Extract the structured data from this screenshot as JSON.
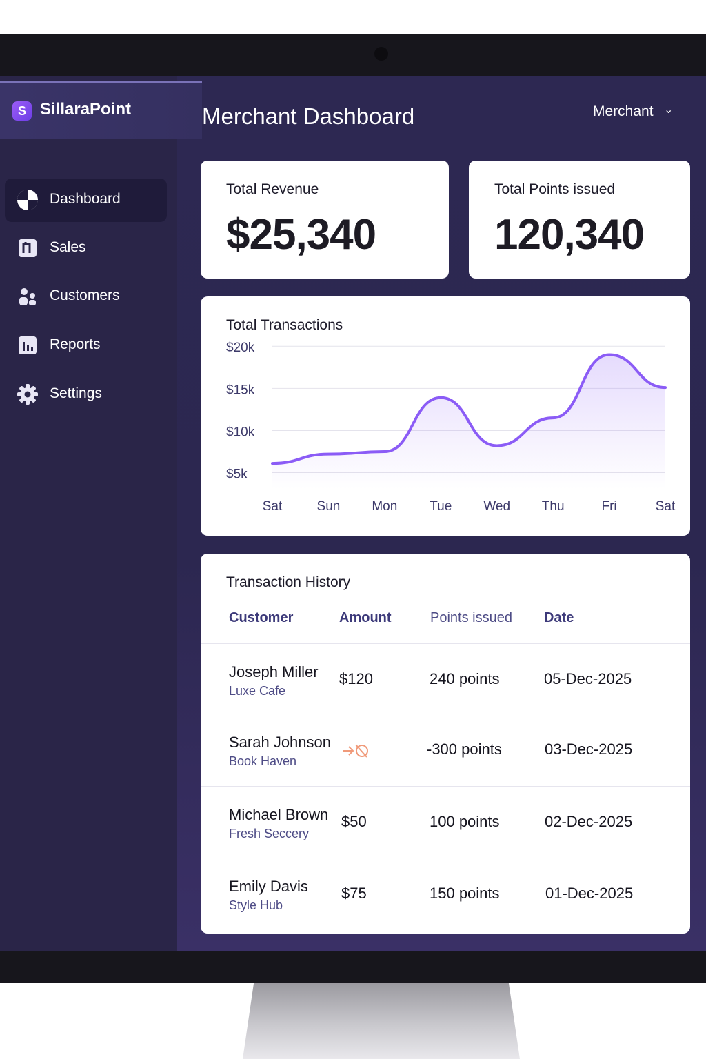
{
  "app": {
    "brand_name": "SillaraPoint",
    "brand_logo_glyph": "S",
    "accent_color": "#8b5cf6"
  },
  "sidebar": {
    "items": [
      {
        "label": "Dashboard",
        "icon": "dashboard-pie-icon",
        "active": true
      },
      {
        "label": "Sales",
        "icon": "sales-tag-icon",
        "active": false
      },
      {
        "label": "Customers",
        "icon": "customers-group-icon",
        "active": false
      },
      {
        "label": "Reports",
        "icon": "reports-bar-icon",
        "active": false
      },
      {
        "label": "Settings",
        "icon": "gear-icon",
        "active": false
      }
    ]
  },
  "header": {
    "title": "Merchant Dashboard",
    "role_menu_label": "Merchant",
    "role_menu_icon": "chevron-down-icon"
  },
  "stats": {
    "revenue": {
      "label": "Total Revenue",
      "value": "$25,340"
    },
    "points": {
      "label": "Total Points issued",
      "value": "120,340"
    }
  },
  "chart_card": {
    "title": "Total Transactions"
  },
  "chart_data": {
    "type": "area",
    "title": "Total Transactions",
    "categories": [
      "Sat",
      "Sun",
      "Mon",
      "Tue",
      "Wed",
      "Thu",
      "Fri",
      "Sat"
    ],
    "y_tick_labels": [
      "$20k",
      "$15k",
      "$10k",
      "$5k"
    ],
    "y_ticks": [
      20000,
      15000,
      10000,
      5000
    ],
    "ylim": [
      3000,
      21000
    ],
    "series": [
      {
        "values": [
          6100,
          7200,
          7500,
          13900,
          8200,
          11500,
          19000,
          15100
        ]
      }
    ],
    "line_color": "#8b5cf6",
    "grid": true,
    "legend": "none"
  },
  "transactions": {
    "title": "Transaction History",
    "columns": [
      "Customer",
      "Amount",
      "Points issued",
      "Date"
    ],
    "rows": [
      {
        "customer": "Joseph Miller",
        "store": "Luxe Cafe",
        "amount": "$120",
        "points": "240 points",
        "date": "05-Dec-2025"
      },
      {
        "customer": "Sarah Johnson",
        "store": "Book Haven",
        "amount": "",
        "amount_icon": "refund-icon",
        "points": "-300 points",
        "date": "03-Dec-2025"
      },
      {
        "customer": "Michael Brown",
        "store": "Fresh Seccery",
        "amount": "$50",
        "points": "100 points",
        "date": "02-Dec-2025"
      },
      {
        "customer": "Emily Davis",
        "store": "Style Hub",
        "amount": "$75",
        "points": "150 points",
        "date": "01-Dec-2025"
      }
    ]
  }
}
